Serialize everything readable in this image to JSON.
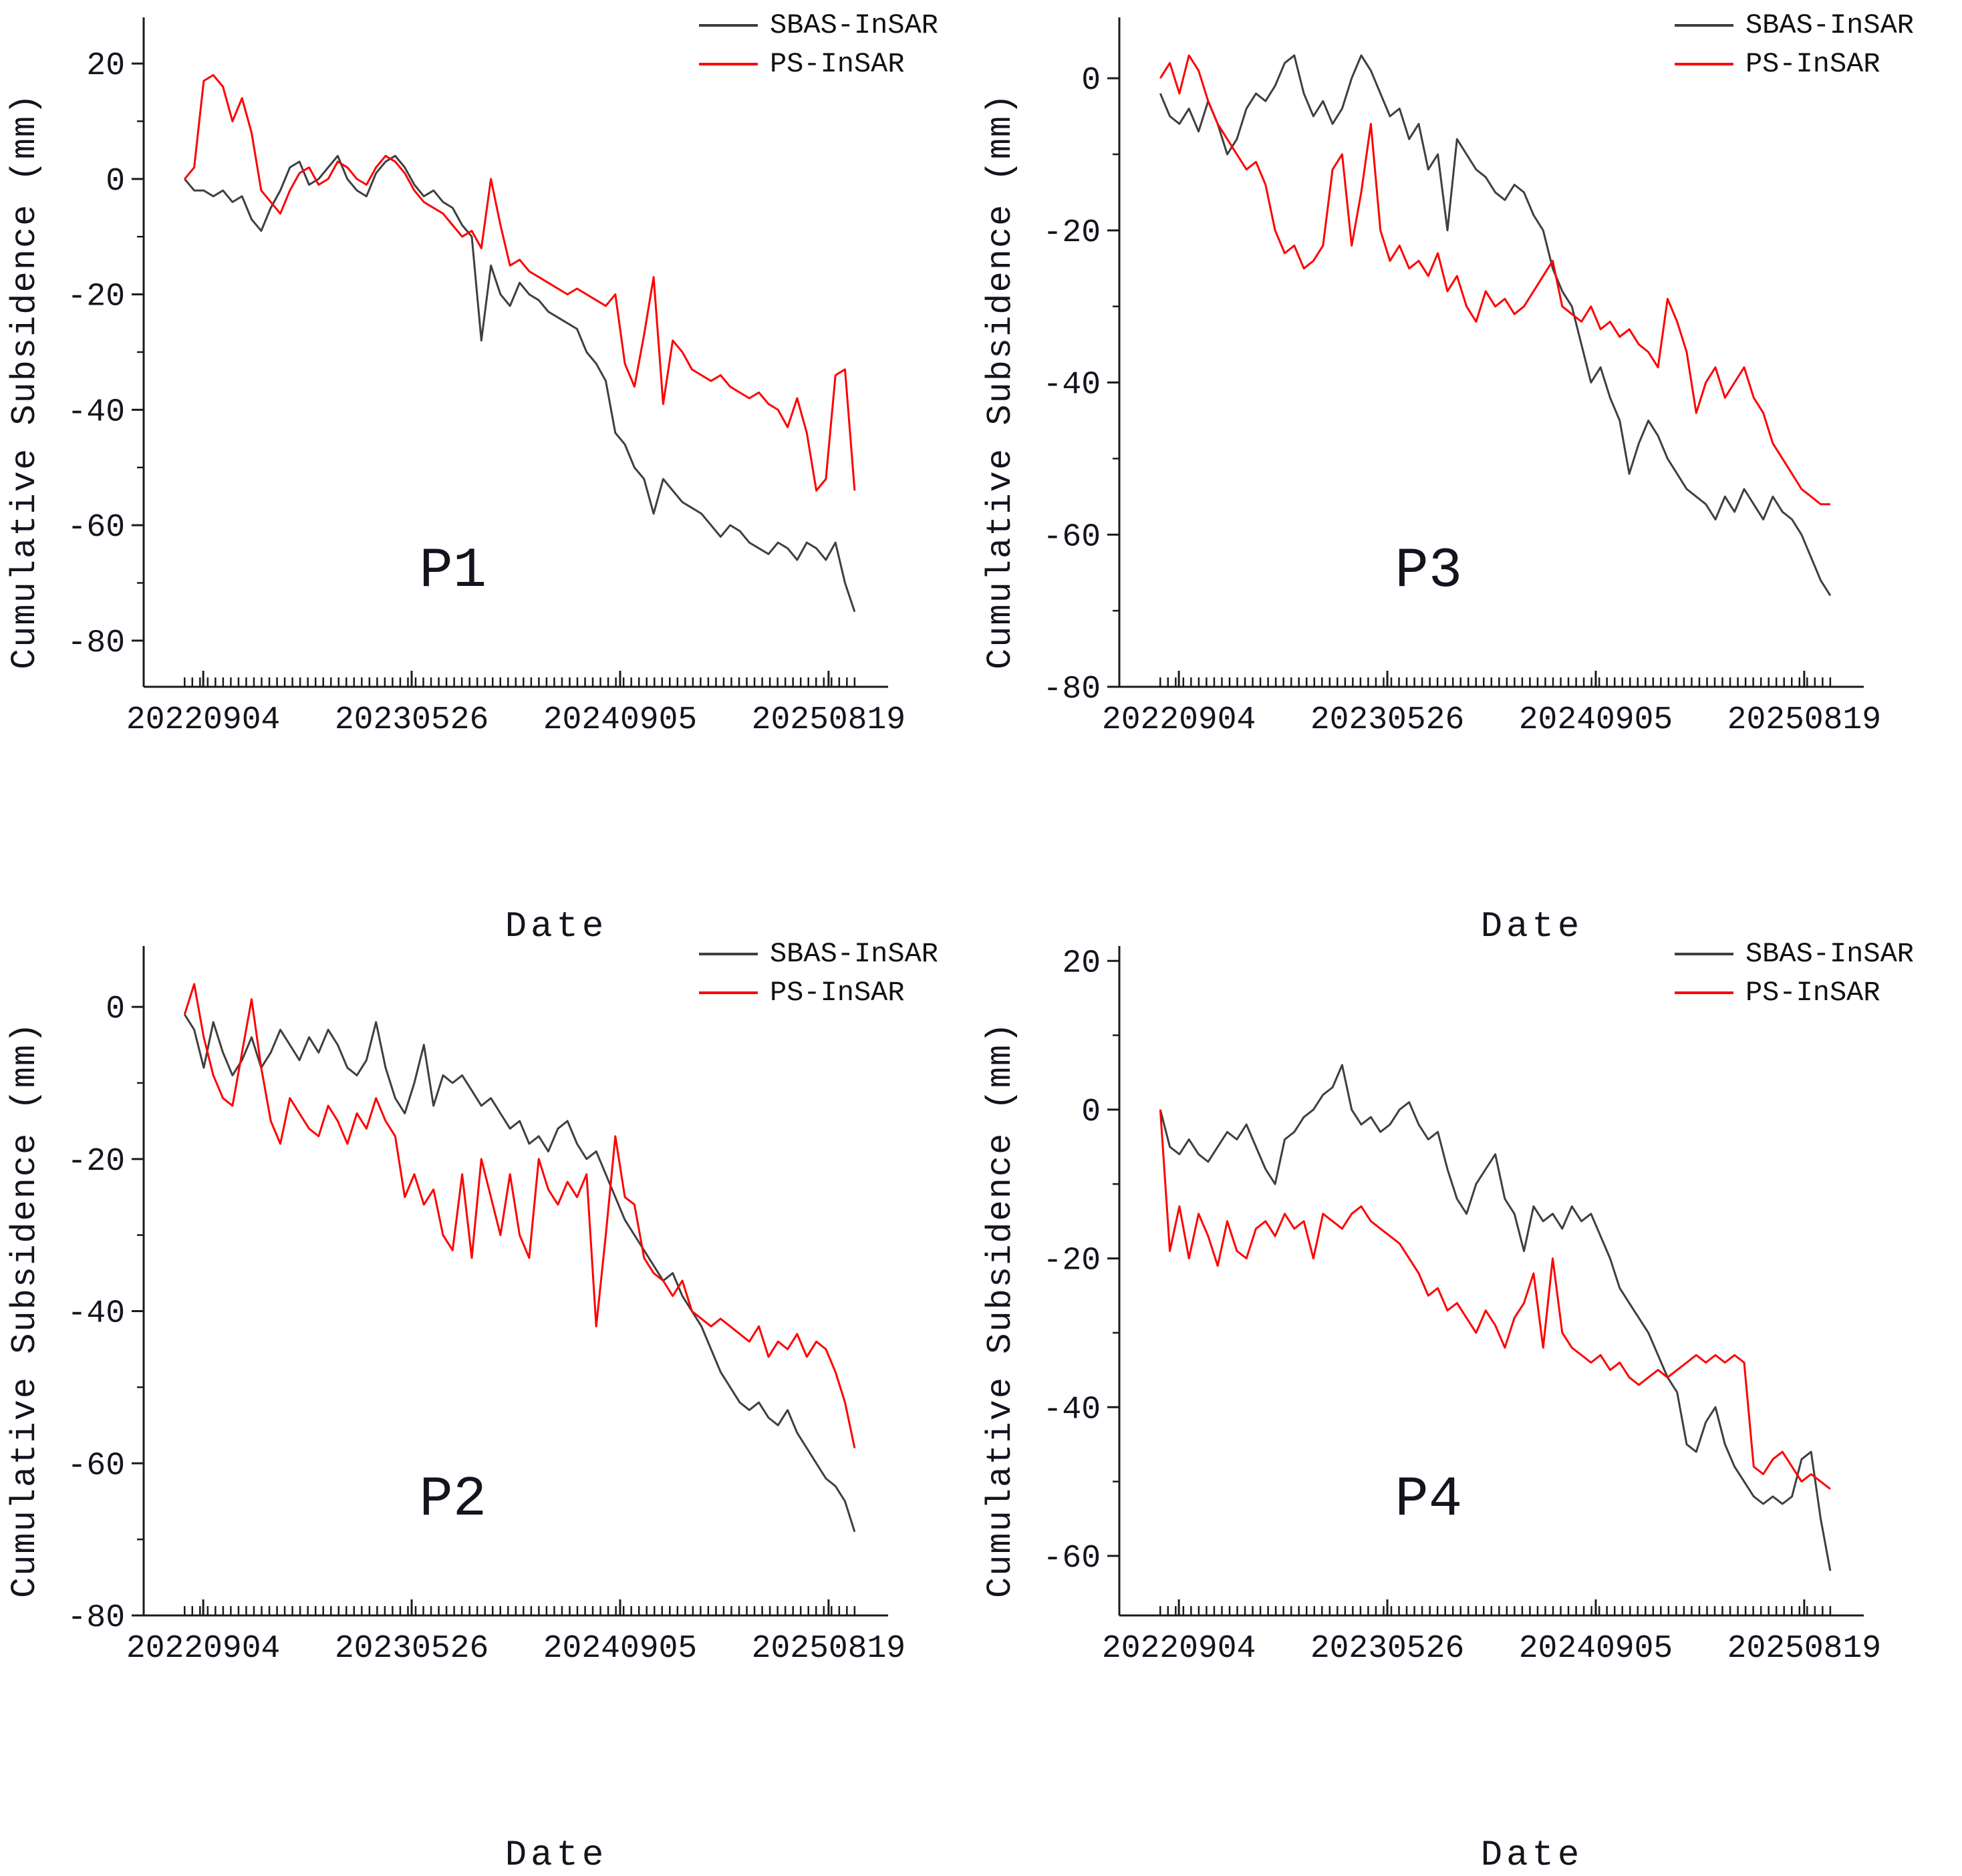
{
  "figure": {
    "background": "#ffffff",
    "axis_color": "#1a1a1a",
    "sbas_color": "#3f3f3f",
    "ps_color": "#ff0000"
  },
  "chart_data": [
    {
      "type": "line",
      "panel": "P1",
      "xlabel": "Date",
      "ylabel": "Cumulative Subsidence (mm)",
      "x_ticks": [
        "20220904",
        "20230526",
        "20240905",
        "20250819"
      ],
      "y_ticks": [
        20,
        0,
        -20,
        -40,
        -60,
        -80
      ],
      "ylim": [
        -88,
        28
      ],
      "grid": false,
      "legend_position": "top-right",
      "series": [
        {
          "name": "SBAS-InSAR",
          "color": "#3f3f3f",
          "values": [
            0,
            -2,
            -2,
            -3,
            -2,
            -4,
            -3,
            -7,
            -9,
            -5,
            -2,
            2,
            3,
            -1,
            0,
            2,
            4,
            0,
            -2,
            -3,
            1,
            3,
            4,
            2,
            -1,
            -3,
            -2,
            -4,
            -5,
            -8,
            -10,
            -28,
            -15,
            -20,
            -22,
            -18,
            -20,
            -21,
            -23,
            -24,
            -25,
            -26,
            -30,
            -32,
            -35,
            -44,
            -46,
            -50,
            -52,
            -58,
            -52,
            -54,
            -56,
            -57,
            -58,
            -60,
            -62,
            -60,
            -61,
            -63,
            -64,
            -65,
            -63,
            -64,
            -66,
            -63,
            -64,
            -66,
            -63,
            -70,
            -75
          ]
        },
        {
          "name": "PS-InSAR",
          "color": "#ff0000",
          "values": [
            0,
            2,
            17,
            18,
            16,
            10,
            14,
            8,
            -2,
            -4,
            -6,
            -2,
            1,
            2,
            -1,
            0,
            3,
            2,
            0,
            -1,
            2,
            4,
            3,
            1,
            -2,
            -4,
            -5,
            -6,
            -8,
            -10,
            -9,
            -12,
            0,
            -8,
            -15,
            -14,
            -16,
            -17,
            -18,
            -19,
            -20,
            -19,
            -20,
            -21,
            -22,
            -20,
            -32,
            -36,
            -27,
            -17,
            -39,
            -28,
            -30,
            -33,
            -34,
            -35,
            -34,
            -36,
            -37,
            -38,
            -37,
            -39,
            -40,
            -43,
            -38,
            -44,
            -54,
            -52,
            -34,
            -33,
            -54
          ]
        }
      ]
    },
    {
      "type": "line",
      "panel": "P3",
      "xlabel": "Date",
      "ylabel": "Cumulative Subsidence (mm)",
      "x_ticks": [
        "20220904",
        "20230526",
        "20240905",
        "20250819"
      ],
      "y_ticks": [
        0,
        -20,
        -40,
        -60,
        -80
      ],
      "ylim": [
        -80,
        8
      ],
      "grid": false,
      "legend_position": "top-right",
      "series": [
        {
          "name": "SBAS-InSAR",
          "color": "#3f3f3f",
          "values": [
            -2,
            -5,
            -6,
            -4,
            -7,
            -3,
            -6,
            -10,
            -8,
            -4,
            -2,
            -3,
            -1,
            2,
            3,
            -2,
            -5,
            -3,
            -6,
            -4,
            0,
            3,
            1,
            -2,
            -5,
            -4,
            -8,
            -6,
            -12,
            -10,
            -20,
            -8,
            -10,
            -12,
            -13,
            -15,
            -16,
            -14,
            -15,
            -18,
            -20,
            -25,
            -28,
            -30,
            -35,
            -40,
            -38,
            -42,
            -45,
            -52,
            -48,
            -45,
            -47,
            -50,
            -52,
            -54,
            -55,
            -56,
            -58,
            -55,
            -57,
            -54,
            -56,
            -58,
            -55,
            -57,
            -58,
            -60,
            -63,
            -66,
            -68
          ]
        },
        {
          "name": "PS-InSAR",
          "color": "#ff0000",
          "values": [
            0,
            2,
            -2,
            3,
            1,
            -3,
            -6,
            -8,
            -10,
            -12,
            -11,
            -14,
            -20,
            -23,
            -22,
            -25,
            -24,
            -22,
            -12,
            -10,
            -22,
            -15,
            -6,
            -20,
            -24,
            -22,
            -25,
            -24,
            -26,
            -23,
            -28,
            -26,
            -30,
            -32,
            -28,
            -30,
            -29,
            -31,
            -30,
            -28,
            -26,
            -24,
            -30,
            -31,
            -32,
            -30,
            -33,
            -32,
            -34,
            -33,
            -35,
            -36,
            -38,
            -29,
            -32,
            -36,
            -44,
            -40,
            -38,
            -42,
            -40,
            -38,
            -42,
            -44,
            -48,
            -50,
            -52,
            -54,
            -55,
            -56,
            -56
          ]
        }
      ]
    },
    {
      "type": "line",
      "panel": "P2",
      "xlabel": "Date",
      "ylabel": "Cumulative Subsidence (mm)",
      "x_ticks": [
        "20220904",
        "20230526",
        "20240905",
        "20250819"
      ],
      "y_ticks": [
        0,
        -20,
        -40,
        -60,
        -80
      ],
      "ylim": [
        -80,
        8
      ],
      "grid": false,
      "legend_position": "top-right",
      "series": [
        {
          "name": "SBAS-InSAR",
          "color": "#3f3f3f",
          "values": [
            -1,
            -3,
            -8,
            -2,
            -6,
            -9,
            -7,
            -4,
            -8,
            -6,
            -3,
            -5,
            -7,
            -4,
            -6,
            -3,
            -5,
            -8,
            -9,
            -7,
            -2,
            -8,
            -12,
            -14,
            -10,
            -5,
            -13,
            -9,
            -10,
            -9,
            -11,
            -13,
            -12,
            -14,
            -16,
            -15,
            -18,
            -17,
            -19,
            -16,
            -15,
            -18,
            -20,
            -19,
            -22,
            -25,
            -28,
            -30,
            -32,
            -34,
            -36,
            -35,
            -38,
            -40,
            -42,
            -45,
            -48,
            -50,
            -52,
            -53,
            -52,
            -54,
            -55,
            -53,
            -56,
            -58,
            -60,
            -62,
            -63,
            -65,
            -69
          ]
        },
        {
          "name": "PS-InSAR",
          "color": "#ff0000",
          "values": [
            -1,
            3,
            -4,
            -9,
            -12,
            -13,
            -6,
            1,
            -8,
            -15,
            -18,
            -12,
            -14,
            -16,
            -17,
            -13,
            -15,
            -18,
            -14,
            -16,
            -12,
            -15,
            -17,
            -25,
            -22,
            -26,
            -24,
            -30,
            -32,
            -22,
            -33,
            -20,
            -25,
            -30,
            -22,
            -30,
            -33,
            -20,
            -24,
            -26,
            -23,
            -25,
            -22,
            -42,
            -30,
            -17,
            -25,
            -26,
            -33,
            -35,
            -36,
            -38,
            -36,
            -40,
            -41,
            -42,
            -41,
            -42,
            -43,
            -44,
            -42,
            -46,
            -44,
            -45,
            -43,
            -46,
            -44,
            -45,
            -48,
            -52,
            -58
          ]
        }
      ]
    },
    {
      "type": "line",
      "panel": "P4",
      "xlabel": "Date",
      "ylabel": "Cumulative Subsidence (mm)",
      "x_ticks": [
        "20220904",
        "20230526",
        "20240905",
        "20250819"
      ],
      "y_ticks": [
        20,
        0,
        -20,
        -40,
        -60
      ],
      "ylim": [
        -68,
        22
      ],
      "grid": false,
      "legend_position": "top-right",
      "series": [
        {
          "name": "SBAS-InSAR",
          "color": "#3f3f3f",
          "values": [
            0,
            -5,
            -6,
            -4,
            -6,
            -7,
            -5,
            -3,
            -4,
            -2,
            -5,
            -8,
            -10,
            -4,
            -3,
            -1,
            0,
            2,
            3,
            6,
            0,
            -2,
            -1,
            -3,
            -2,
            0,
            1,
            -2,
            -4,
            -3,
            -8,
            -12,
            -14,
            -10,
            -8,
            -6,
            -12,
            -14,
            -19,
            -13,
            -15,
            -14,
            -16,
            -13,
            -15,
            -14,
            -17,
            -20,
            -24,
            -26,
            -28,
            -30,
            -33,
            -36,
            -38,
            -45,
            -46,
            -42,
            -40,
            -45,
            -48,
            -50,
            -52,
            -53,
            -52,
            -53,
            -52,
            -47,
            -46,
            -55,
            -62
          ]
        },
        {
          "name": "PS-InSAR",
          "color": "#ff0000",
          "values": [
            0,
            -19,
            -13,
            -20,
            -14,
            -17,
            -21,
            -15,
            -19,
            -20,
            -16,
            -15,
            -17,
            -14,
            -16,
            -15,
            -20,
            -14,
            -15,
            -16,
            -14,
            -13,
            -15,
            -16,
            -17,
            -18,
            -20,
            -22,
            -25,
            -24,
            -27,
            -26,
            -28,
            -30,
            -27,
            -29,
            -32,
            -28,
            -26,
            -22,
            -32,
            -20,
            -30,
            -32,
            -33,
            -34,
            -33,
            -35,
            -34,
            -36,
            -37,
            -36,
            -35,
            -36,
            -35,
            -34,
            -33,
            -34,
            -33,
            -34,
            -33,
            -34,
            -48,
            -49,
            -47,
            -46,
            -48,
            -50,
            -49,
            -50,
            -51
          ]
        }
      ]
    }
  ]
}
